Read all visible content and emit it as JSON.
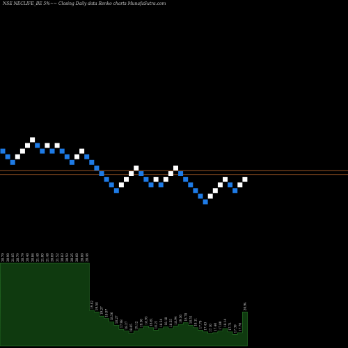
{
  "chart_data": {
    "type": "renko",
    "title": "NSE NECLIFE_BE 5%~~  Closing Daily data  Renko  charts MunafaSutra.com",
    "colors": {
      "background": "#000000",
      "up_brick": "#ffffff",
      "down_brick": "#1e7be6",
      "reference_line": "#b0602a",
      "volume_fill": "#0f3a0f",
      "volume_edge": "#2a7a2a"
    },
    "reference_lines": [
      0.55,
      -0.15
    ],
    "bricks": [
      {
        "dir": "down",
        "level": 4
      },
      {
        "dir": "down",
        "level": 3
      },
      {
        "dir": "down",
        "level": 2
      },
      {
        "dir": "up",
        "level": 3
      },
      {
        "dir": "up",
        "level": 4
      },
      {
        "dir": "up",
        "level": 5
      },
      {
        "dir": "up",
        "level": 6
      },
      {
        "dir": "down",
        "level": 5
      },
      {
        "dir": "down",
        "level": 4
      },
      {
        "dir": "up",
        "level": 5
      },
      {
        "dir": "down",
        "level": 4
      },
      {
        "dir": "up",
        "level": 5
      },
      {
        "dir": "down",
        "level": 4
      },
      {
        "dir": "down",
        "level": 3
      },
      {
        "dir": "down",
        "level": 2
      },
      {
        "dir": "up",
        "level": 3
      },
      {
        "dir": "up",
        "level": 4
      },
      {
        "dir": "down",
        "level": 3
      },
      {
        "dir": "down",
        "level": 2
      },
      {
        "dir": "down",
        "level": 1
      },
      {
        "dir": "down",
        "level": 0
      },
      {
        "dir": "down",
        "level": -1
      },
      {
        "dir": "down",
        "level": -2
      },
      {
        "dir": "down",
        "level": -3
      },
      {
        "dir": "up",
        "level": -2
      },
      {
        "dir": "up",
        "level": -1
      },
      {
        "dir": "up",
        "level": 0
      },
      {
        "dir": "up",
        "level": 1
      },
      {
        "dir": "down",
        "level": 0
      },
      {
        "dir": "down",
        "level": -1
      },
      {
        "dir": "down",
        "level": -2
      },
      {
        "dir": "up",
        "level": -1
      },
      {
        "dir": "down",
        "level": -2
      },
      {
        "dir": "up",
        "level": -1
      },
      {
        "dir": "up",
        "level": 0
      },
      {
        "dir": "up",
        "level": 1
      },
      {
        "dir": "down",
        "level": 0
      },
      {
        "dir": "down",
        "level": -1
      },
      {
        "dir": "down",
        "level": -2
      },
      {
        "dir": "down",
        "level": -3
      },
      {
        "dir": "down",
        "level": -4
      },
      {
        "dir": "down",
        "level": -5
      },
      {
        "dir": "up",
        "level": -4
      },
      {
        "dir": "up",
        "level": -3
      },
      {
        "dir": "up",
        "level": -2
      },
      {
        "dir": "up",
        "level": -1
      },
      {
        "dir": "down",
        "level": -2
      },
      {
        "dir": "down",
        "level": -3
      },
      {
        "dir": "up",
        "level": -2
      },
      {
        "dir": "up",
        "level": -1
      }
    ],
    "volume": [
      {
        "label": "20.79",
        "value": 100
      },
      {
        "label": "20.90",
        "value": 100
      },
      {
        "label": "21.05",
        "value": 100
      },
      {
        "label": "20.79",
        "value": 100
      },
      {
        "label": "20.79",
        "value": 100
      },
      {
        "label": "20.40",
        "value": 100
      },
      {
        "label": "20.86",
        "value": 100
      },
      {
        "label": "21.40",
        "value": 100
      },
      {
        "label": "21.00",
        "value": 100
      },
      {
        "label": "21.48",
        "value": 100
      },
      {
        "label": "20.69",
        "value": 100
      },
      {
        "label": "21.52",
        "value": 100
      },
      {
        "label": "20.83",
        "value": 100
      },
      {
        "label": "20.59",
        "value": 100
      },
      {
        "label": "20.25",
        "value": 100
      },
      {
        "label": "20.60",
        "value": 100
      },
      {
        "label": "20.80",
        "value": 100
      },
      {
        "label": "20.46",
        "value": 100
      },
      {
        "label": "19.82",
        "value": 43
      },
      {
        "label": "19.58",
        "value": 41
      },
      {
        "label": "19.27",
        "value": 36
      },
      {
        "label": "18.97",
        "value": 33
      },
      {
        "label": "18.56",
        "value": 29
      },
      {
        "label": "18.27",
        "value": 25
      },
      {
        "label": "17.98",
        "value": 20
      },
      {
        "label": "18.27",
        "value": 18
      },
      {
        "label": "18.65",
        "value": 15
      },
      {
        "label": "19.12",
        "value": 18
      },
      {
        "label": "19.30",
        "value": 21
      },
      {
        "label": "18.93",
        "value": 24
      },
      {
        "label": "18.61",
        "value": 22
      },
      {
        "label": "18.21",
        "value": 19
      },
      {
        "label": "18.54",
        "value": 21
      },
      {
        "label": "18.18",
        "value": 23
      },
      {
        "label": "18.55",
        "value": 21
      },
      {
        "label": "18.94",
        "value": 24
      },
      {
        "label": "19.36",
        "value": 26
      },
      {
        "label": "18.78",
        "value": 28
      },
      {
        "label": "18.51",
        "value": 25
      },
      {
        "label": "18.11",
        "value": 22
      },
      {
        "label": "17.78",
        "value": 19
      },
      {
        "label": "17.43",
        "value": 17
      },
      {
        "label": "17.10",
        "value": 15
      },
      {
        "label": "17.40",
        "value": 16
      },
      {
        "label": "17.80",
        "value": 18
      },
      {
        "label": "18.14",
        "value": 21
      },
      {
        "label": "17.71",
        "value": 17
      },
      {
        "label": "17.39",
        "value": 14
      },
      {
        "label": "17.70",
        "value": 16
      },
      {
        "label": "20.94",
        "value": 41
      }
    ]
  }
}
